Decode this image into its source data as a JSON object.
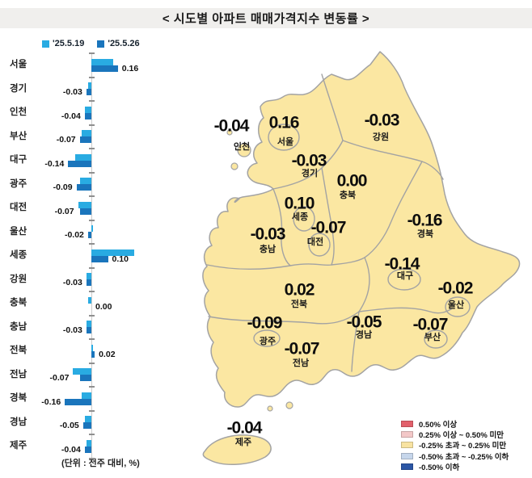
{
  "title": "<  시도별  아파트  매매가격지수  변동률  >",
  "unit_note": "(단위 : 전주 대비, %)",
  "chart_data": {
    "type": "bar",
    "orientation": "horizontal",
    "unit": "%",
    "xlim": [
      -0.35,
      0.55
    ],
    "categories": [
      "서울",
      "경기",
      "인천",
      "부산",
      "대구",
      "광주",
      "대전",
      "울산",
      "세종",
      "강원",
      "충북",
      "충남",
      "전북",
      "전남",
      "경북",
      "경남",
      "제주"
    ],
    "series": [
      {
        "name": "'25.5.19",
        "color": "#29abe2",
        "values": [
          0.13,
          -0.02,
          -0.04,
          -0.06,
          -0.1,
          -0.07,
          -0.08,
          0.01,
          0.26,
          -0.03,
          -0.02,
          -0.03,
          0.01,
          -0.11,
          -0.06,
          -0.04,
          -0.03
        ]
      },
      {
        "name": "'25.5.26",
        "color": "#1a75bc",
        "values": [
          0.16,
          -0.03,
          -0.04,
          -0.07,
          -0.14,
          -0.09,
          -0.07,
          -0.02,
          0.1,
          -0.03,
          0.0,
          -0.03,
          0.02,
          -0.07,
          -0.16,
          -0.05,
          -0.04
        ],
        "labels": [
          "0.16",
          "-0.03",
          "-0.04",
          "-0.07",
          "-0.14",
          "-0.09",
          "-0.07",
          "-0.02",
          "0.10",
          "-0.03",
          "0.00",
          "-0.03",
          "0.02",
          "-0.07",
          "-0.16",
          "-0.05",
          "-0.04"
        ]
      }
    ],
    "value_labels_from": "'25.5.26"
  },
  "map": {
    "fill_color": "#fbe7a2",
    "border_color": "#a3a3a3",
    "regions": [
      {
        "id": "incheon",
        "name": "인천",
        "value": "-0.04"
      },
      {
        "id": "seoul",
        "name": "서울",
        "value": "0.16"
      },
      {
        "id": "gyeonggi",
        "name": "경기",
        "value": "-0.03"
      },
      {
        "id": "gangwon",
        "name": "강원",
        "value": "-0.03"
      },
      {
        "id": "chungbuk",
        "name": "충북",
        "value": "0.00"
      },
      {
        "id": "sejong",
        "name": "세종",
        "value": "0.10"
      },
      {
        "id": "daejeon",
        "name": "대전",
        "value": "-0.07"
      },
      {
        "id": "chungnam",
        "name": "충남",
        "value": "-0.03"
      },
      {
        "id": "gyeongbuk",
        "name": "경북",
        "value": "-0.16"
      },
      {
        "id": "daegu",
        "name": "대구",
        "value": "-0.14"
      },
      {
        "id": "ulsan",
        "name": "울산",
        "value": "-0.02"
      },
      {
        "id": "jeonbuk",
        "name": "전북",
        "value": "0.02"
      },
      {
        "id": "gwangju",
        "name": "광주",
        "value": "-0.09"
      },
      {
        "id": "jeonnam",
        "name": "전남",
        "value": "-0.07"
      },
      {
        "id": "gyeongnam",
        "name": "경남",
        "value": "-0.05"
      },
      {
        "id": "busan",
        "name": "부산",
        "value": "-0.07"
      },
      {
        "id": "jeju",
        "name": "제주",
        "value": "-0.04"
      }
    ],
    "legend": [
      {
        "label": "0.50% 이상",
        "color": "#e2606b"
      },
      {
        "label": "0.25% 이상 ~ 0.50% 미만",
        "color": "#f3c8c8"
      },
      {
        "label": "-0.25% 초과 ~ 0.25% 미만",
        "color": "#f8e3a1"
      },
      {
        "label": "-0.50% 초과 ~ -0.25% 이하",
        "color": "#c6d6eb"
      },
      {
        "label": "-0.50% 이하",
        "color": "#2b56a5"
      }
    ]
  }
}
